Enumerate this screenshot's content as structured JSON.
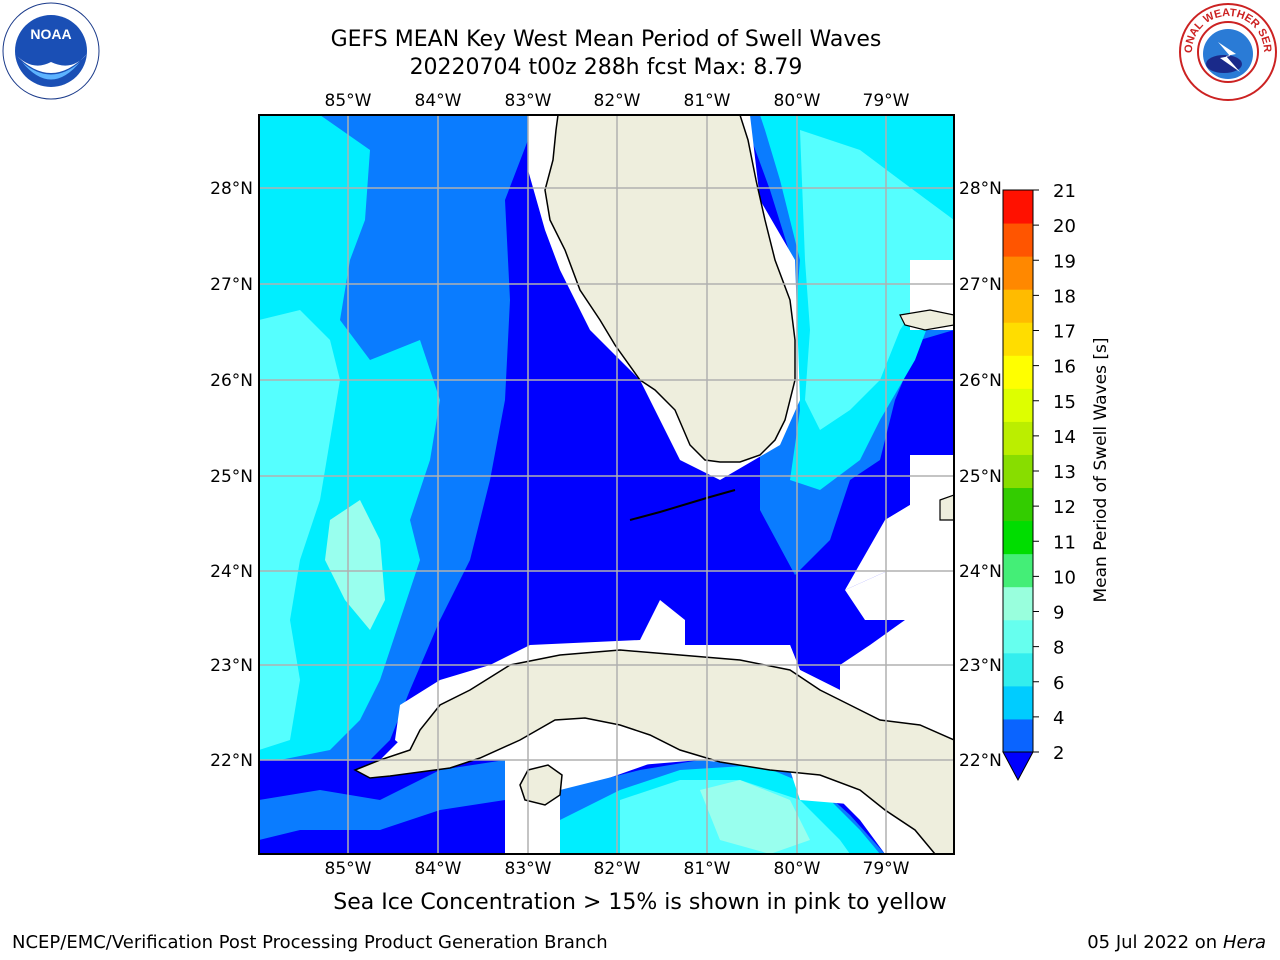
{
  "title_line1": "GEFS MEAN Key West Mean Period of Swell Waves",
  "title_line2": "20220704 t00z 288h fcst   Max: 8.79",
  "lon_labels": [
    "85°W",
    "84°W",
    "83°W",
    "82°W",
    "81°W",
    "80°W",
    "79°W"
  ],
  "lat_labels": [
    "28°N",
    "27°N",
    "26°N",
    "25°N",
    "24°N",
    "23°N",
    "22°N"
  ],
  "colorbar": {
    "label": "Mean Period of Swell Waves [s]",
    "ticks": [
      "2",
      "4",
      "6",
      "8",
      "9",
      "10",
      "11",
      "12",
      "13",
      "14",
      "15",
      "16",
      "17",
      "18",
      "19",
      "20",
      "21"
    ],
    "colors": [
      "#0a64ff",
      "#00ccff",
      "#33eeee",
      "#66ffee",
      "#99ffdd",
      "#44ee77",
      "#00dd00",
      "#33cc00",
      "#88dd00",
      "#bbee00",
      "#ddff00",
      "#ffff00",
      "#ffdd00",
      "#ffbb00",
      "#ff8800",
      "#ff5500",
      "#ff1100"
    ],
    "under_color": "#0000ff"
  },
  "sea_ice_note": "Sea Ice Concentration > 15% is shown in pink to yellow",
  "footer_left": "NCEP/EMC/Verification Post Processing Product Generation Branch",
  "footer_right_date": "05 Jul 2022 on ",
  "footer_right_host": "Hera",
  "logos": {
    "left": "NOAA",
    "right": "NATIONAL WEATHER SERVICE"
  },
  "colors": {
    "land": "#eeeedd",
    "deep": "#0000ff",
    "mid": "#0a7cff",
    "light": "#00eeff",
    "pale": "#55ffff",
    "grid": "#b0b0b0"
  }
}
